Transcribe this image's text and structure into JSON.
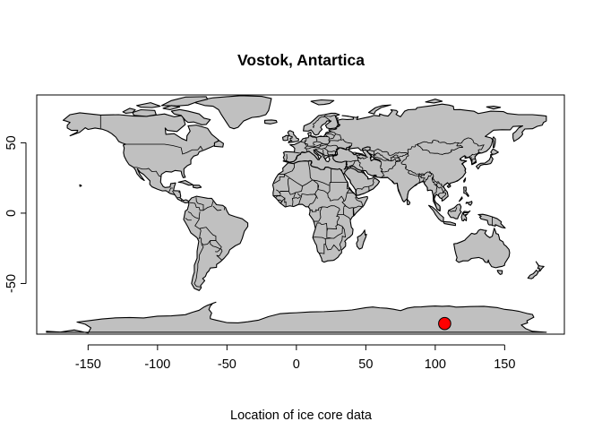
{
  "chart_data": {
    "type": "map",
    "title": "Vostok, Antartica",
    "xlabel": "Location of ice core data",
    "ylabel": "",
    "xlim": [
      -187,
      193
    ],
    "ylim": [
      -86,
      84
    ],
    "x_ticks": [
      -150,
      -100,
      -50,
      0,
      50,
      100,
      150
    ],
    "x_tick_labels": [
      "-150",
      "-100",
      "-50",
      "0",
      "50",
      "100",
      "150"
    ],
    "y_ticks": [
      -50,
      0,
      50
    ],
    "y_tick_labels": [
      "-50",
      "0",
      "50"
    ],
    "grid": false,
    "land_color": "#c0c0c0",
    "point": {
      "lon": 106.8,
      "lat": -78.5,
      "fill": "#ff0000",
      "stroke": "#000000"
    }
  }
}
